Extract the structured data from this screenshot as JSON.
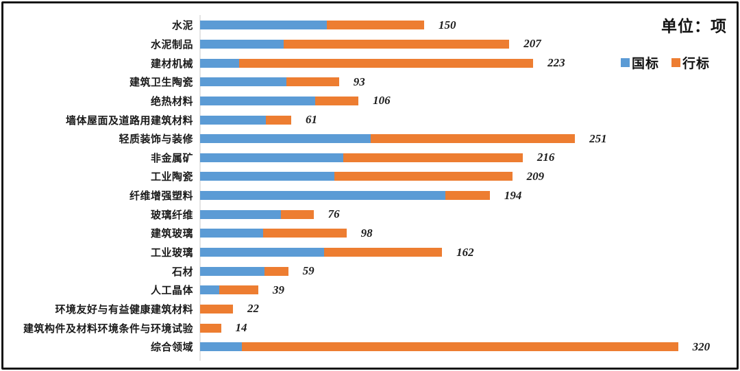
{
  "unit_label": "单位：项",
  "chart_data": {
    "type": "bar",
    "orientation": "horizontal",
    "stacked": true,
    "unit_label": "单位：项",
    "legend_position": "top-right",
    "grid": false,
    "xlim": [
      0,
      340
    ],
    "categories": [
      "水泥",
      "水泥制品",
      "建材机械",
      "建筑卫生陶瓷",
      "绝热材料",
      "墙体屋面及道路用建筑材料",
      "轻质装饰与装修",
      "非金属矿",
      "工业陶瓷",
      "纤维增强塑料",
      "玻璃纤维",
      "建筑玻璃",
      "工业玻璃",
      "石材",
      "人工晶体",
      "环境友好与有益健康建筑材料",
      "建筑构件及材料环境条件与环境试验",
      "综合领域"
    ],
    "series": [
      {
        "name": "国标",
        "color": "#5B9BD5",
        "values": [
          85,
          56,
          26,
          58,
          77,
          44,
          114,
          96,
          90,
          164,
          54,
          42,
          83,
          43,
          13,
          0,
          0,
          28
        ]
      },
      {
        "name": "行标",
        "color": "#ED7D31",
        "values": [
          65,
          151,
          197,
          35,
          29,
          17,
          137,
          120,
          119,
          30,
          22,
          56,
          79,
          16,
          26,
          22,
          14,
          292
        ]
      }
    ],
    "totals": [
      150,
      207,
      223,
      93,
      106,
      61,
      251,
      216,
      209,
      194,
      76,
      98,
      162,
      59,
      39,
      22,
      14,
      320
    ],
    "axis_color": "#e4e4e4",
    "value_label_style": "bold-italic"
  }
}
